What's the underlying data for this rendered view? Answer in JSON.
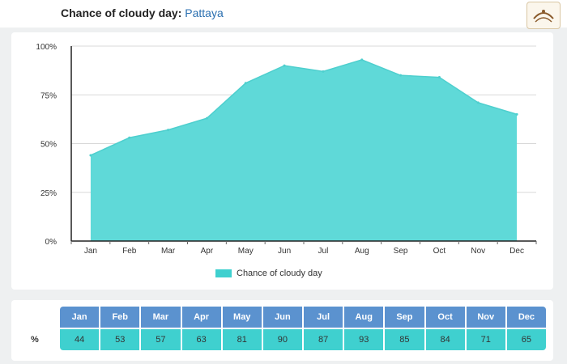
{
  "header": {
    "title_prefix": "Chance of cloudy day:",
    "city": "Pattaya"
  },
  "table": {
    "row_label": "%"
  },
  "colors": {
    "area_fill": "#5fd9d8",
    "header_cell": "#5b92cf",
    "value_cell": "#3fd0cf",
    "city_link": "#2a6fb0"
  },
  "chart_data": {
    "type": "area",
    "title": "",
    "xlabel": "",
    "ylabel": "",
    "categories": [
      "Jan",
      "Feb",
      "Mar",
      "Apr",
      "May",
      "Jun",
      "Jul",
      "Aug",
      "Sep",
      "Oct",
      "Nov",
      "Dec"
    ],
    "series": [
      {
        "name": "Chance of cloudy day",
        "values": [
          44,
          53,
          57,
          63,
          81,
          90,
          87,
          93,
          85,
          84,
          71,
          65
        ]
      }
    ],
    "ylim": [
      0,
      100
    ],
    "yticks": [
      "0%",
      "25%",
      "50%",
      "75%",
      "100%"
    ],
    "grid": true,
    "legend": "bottom"
  }
}
